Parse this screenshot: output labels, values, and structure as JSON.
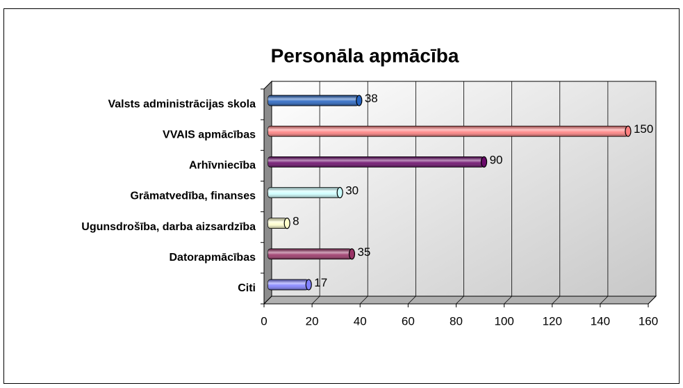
{
  "chart_data": {
    "type": "bar",
    "orientation": "horizontal",
    "title": "Personāla apmācība",
    "categories": [
      "Valsts administrācijas skola",
      "VVAIS apmācības",
      "Arhīvniecība",
      "Grāmatvedība, finanses",
      "Ugunsdrošība, darba aizsardzība",
      "Datorapmācības",
      "Citi"
    ],
    "values": [
      38,
      150,
      90,
      30,
      8,
      35,
      17
    ],
    "colors": [
      "#2563c0",
      "#ff8080",
      "#6a0a6a",
      "#ccffff",
      "#ffffcc",
      "#993366",
      "#8080ff"
    ],
    "xlim": [
      0,
      160
    ],
    "xticks": [
      0,
      20,
      40,
      60,
      80,
      100,
      120,
      140,
      160
    ],
    "grid": true
  }
}
